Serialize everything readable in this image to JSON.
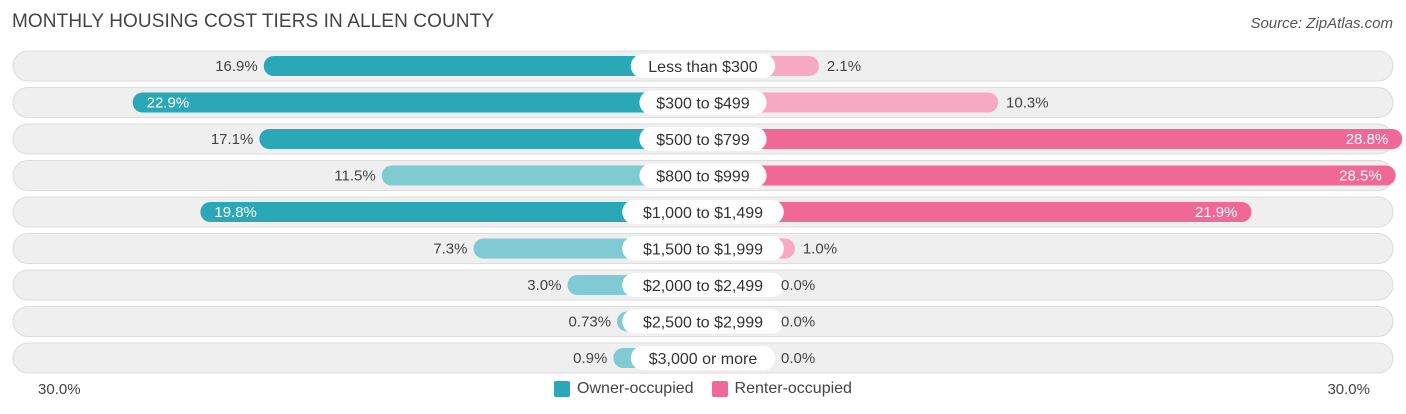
{
  "title": "MONTHLY HOUSING COST TIERS IN ALLEN COUNTY",
  "source": "Source: ZipAtlas.com",
  "colors": {
    "owner": "#2aa8b8",
    "owner_light": "#7fcad3",
    "renter": "#f06896",
    "renter_light": "#f7a8c3"
  },
  "chart_data": {
    "type": "bar",
    "orientation": "diverging-horizontal",
    "title": "MONTHLY HOUSING COST TIERS IN ALLEN COUNTY",
    "axis_max": 30.0,
    "axis_left_label": "30.0%",
    "axis_right_label": "30.0%",
    "categories": [
      "Less than $300",
      "$300 to $499",
      "$500 to $799",
      "$800 to $999",
      "$1,000 to $1,499",
      "$1,500 to $1,999",
      "$2,000 to $2,499",
      "$2,500 to $2,999",
      "$3,000 or more"
    ],
    "series": [
      {
        "name": "Owner-occupied",
        "values": [
          16.9,
          22.9,
          17.1,
          11.5,
          19.8,
          7.3,
          3.0,
          0.73,
          0.9
        ],
        "labels": [
          "16.9%",
          "22.9%",
          "17.1%",
          "11.5%",
          "19.8%",
          "7.3%",
          "3.0%",
          "0.73%",
          "0.9%"
        ]
      },
      {
        "name": "Renter-occupied",
        "values": [
          2.1,
          10.3,
          28.8,
          28.5,
          21.9,
          1.0,
          0.0,
          0.0,
          0.0
        ],
        "labels": [
          "2.1%",
          "10.3%",
          "28.8%",
          "28.5%",
          "21.9%",
          "1.0%",
          "0.0%",
          "0.0%",
          "0.0%"
        ]
      }
    ],
    "legend": [
      "Owner-occupied",
      "Renter-occupied"
    ],
    "legend_position": "bottom-center"
  }
}
